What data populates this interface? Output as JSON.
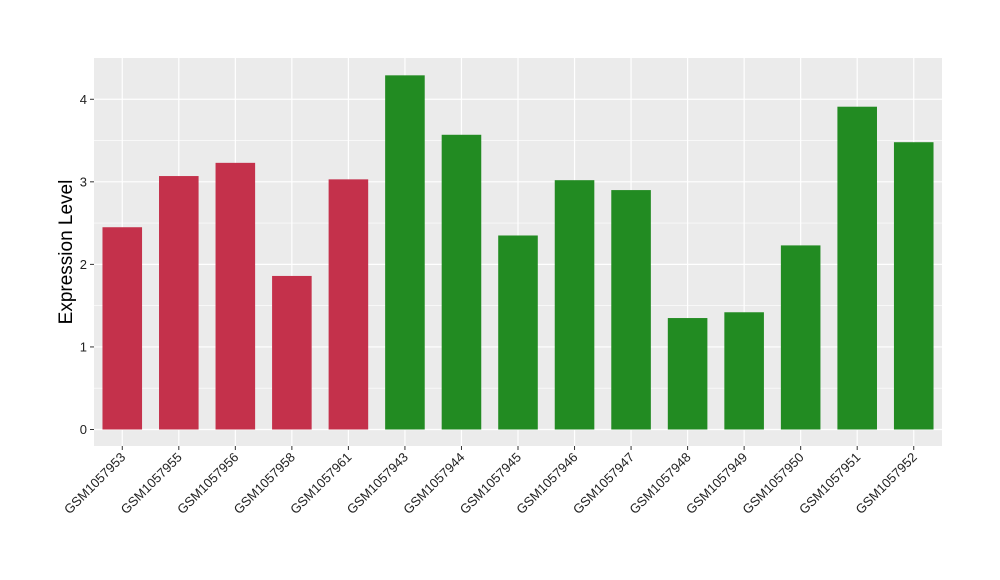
{
  "chart_data": {
    "type": "bar",
    "title": "",
    "xlabel": "",
    "ylabel": "Expression Level",
    "ylim": [
      -0.2,
      4.5
    ],
    "yticks": [
      0,
      1,
      2,
      3,
      4
    ],
    "grid": true,
    "legend": "none",
    "colors": {
      "panel_bg": "#EBEBEB",
      "grid": "#FFFFFF",
      "group_a": "#C4314B",
      "group_b": "#228B22"
    },
    "categories": [
      "GSM1057953",
      "GSM1057955",
      "GSM1057956",
      "GSM1057958",
      "GSM1057961",
      "GSM1057943",
      "GSM1057944",
      "GSM1057945",
      "GSM1057946",
      "GSM1057947",
      "GSM1057948",
      "GSM1057949",
      "GSM1057950",
      "GSM1057951",
      "GSM1057952"
    ],
    "values": [
      2.45,
      3.07,
      3.23,
      1.86,
      3.03,
      4.29,
      3.57,
      2.35,
      3.02,
      2.9,
      1.35,
      1.42,
      2.23,
      3.91,
      3.48
    ],
    "bar_colors": [
      "#C4314B",
      "#C4314B",
      "#C4314B",
      "#C4314B",
      "#C4314B",
      "#228B22",
      "#228B22",
      "#228B22",
      "#228B22",
      "#228B22",
      "#228B22",
      "#228B22",
      "#228B22",
      "#228B22",
      "#228B22"
    ]
  }
}
